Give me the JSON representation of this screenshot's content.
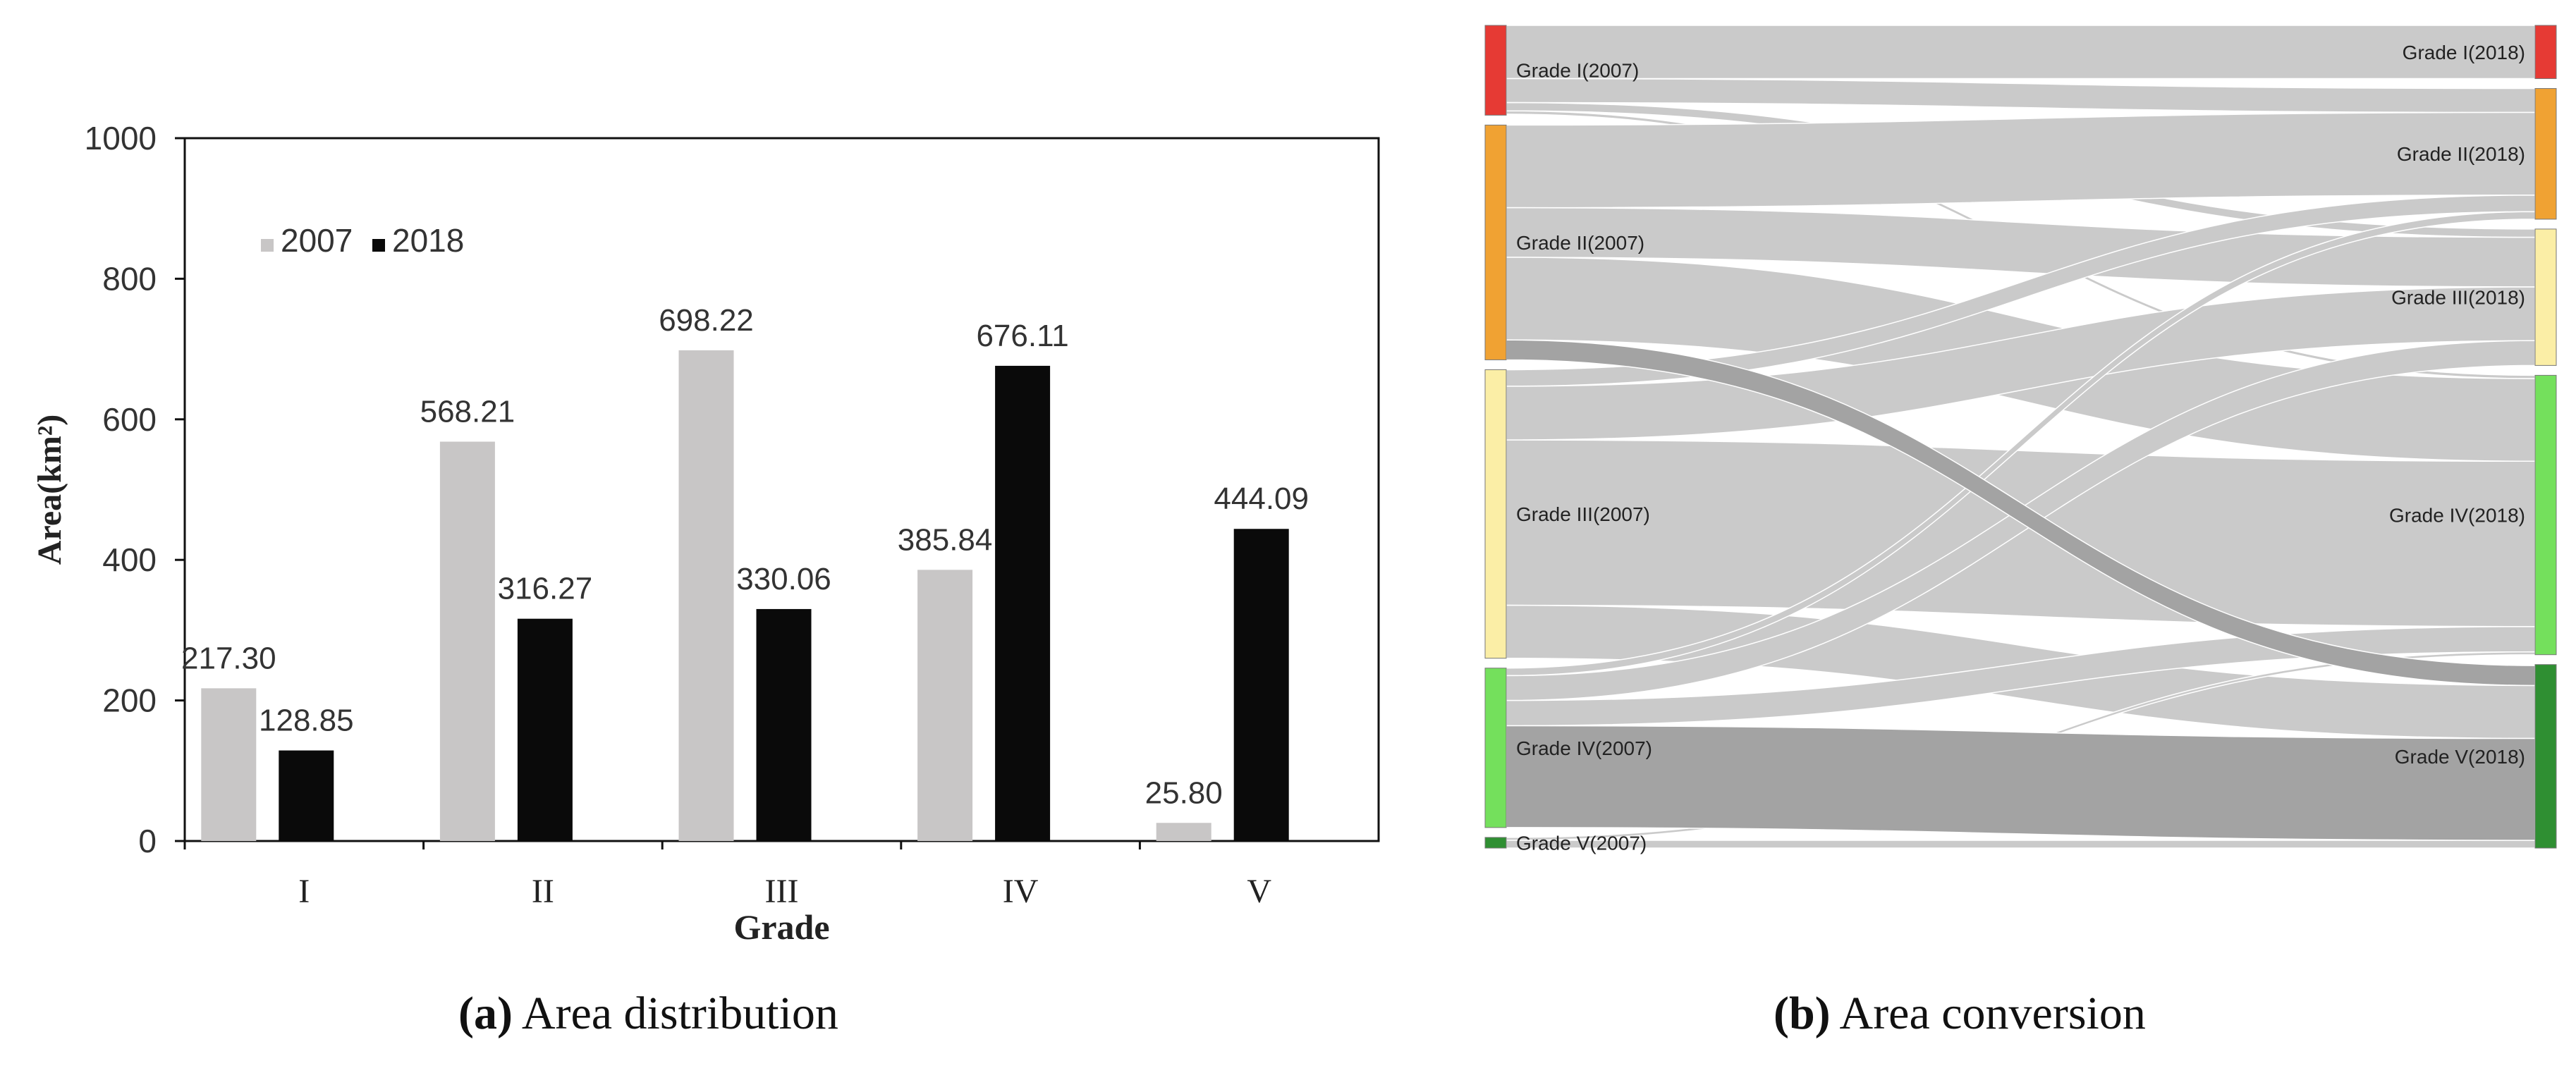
{
  "chart_data": [
    {
      "type": "bar",
      "caption_label": "(a)",
      "caption_text": "Area distribution",
      "xlabel": "Grade",
      "ylabel": "Area(km²)",
      "categories": [
        "I",
        "II",
        "III",
        "IV",
        "V"
      ],
      "ylim": [
        0,
        1000
      ],
      "yticks": [
        "0",
        "200",
        "400",
        "600",
        "800",
        "1000"
      ],
      "legend_position": "top-left",
      "grid": false,
      "series": [
        {
          "name": "2007",
          "color": "#c8c6c6",
          "values": [
            217.3,
            568.21,
            698.22,
            385.84,
            25.8
          ],
          "labels": [
            "217.30",
            "568.21",
            "698.22",
            "385.84",
            "25.80"
          ]
        },
        {
          "name": "2018",
          "color": "#0a0a0a",
          "values": [
            128.85,
            316.27,
            330.06,
            676.11,
            444.09
          ],
          "labels": [
            "128.85",
            "316.27",
            "330.06",
            "676.11",
            "444.09"
          ]
        }
      ]
    },
    {
      "type": "sankey",
      "caption_label": "(b)",
      "caption_text": "Area conversion",
      "link_color": "#c8c8c8",
      "highlight_color": "#9f9f9f",
      "sources": [
        {
          "label": "Grade I(2007)",
          "value": 217.3,
          "color": "#e63a34"
        },
        {
          "label": "Grade II(2007)",
          "value": 568.21,
          "color": "#f0a233"
        },
        {
          "label": "Grade III(2007)",
          "value": 698.22,
          "color": "#fbeea6"
        },
        {
          "label": "Grade IV(2007)",
          "value": 385.84,
          "color": "#74e05c"
        },
        {
          "label": "Grade V(2007)",
          "value": 25.8,
          "color": "#2f8f32"
        }
      ],
      "targets": [
        {
          "label": "Grade I(2018)",
          "value": 128.85,
          "color": "#e63a34"
        },
        {
          "label": "Grade II(2018)",
          "value": 316.27,
          "color": "#f0a233"
        },
        {
          "label": "Grade III(2018)",
          "value": 330.06,
          "color": "#fbeea6"
        },
        {
          "label": "Grade IV(2018)",
          "value": 676.11,
          "color": "#74e05c"
        },
        {
          "label": "Grade V(2018)",
          "value": 444.09,
          "color": "#2f8f32"
        }
      ],
      "links": [
        {
          "source": 0,
          "target": 0,
          "value": 128.85
        },
        {
          "source": 0,
          "target": 1,
          "value": 58
        },
        {
          "source": 0,
          "target": 2,
          "value": 20
        },
        {
          "source": 0,
          "target": 3,
          "value": 8
        },
        {
          "source": 0,
          "target": 4,
          "value": 2.45
        },
        {
          "source": 1,
          "target": 1,
          "value": 200
        },
        {
          "source": 1,
          "target": 2,
          "value": 120
        },
        {
          "source": 1,
          "target": 3,
          "value": 200
        },
        {
          "source": 1,
          "target": 4,
          "value": 48.21,
          "highlight": true
        },
        {
          "source": 2,
          "target": 1,
          "value": 40
        },
        {
          "source": 2,
          "target": 2,
          "value": 130
        },
        {
          "source": 2,
          "target": 3,
          "value": 400
        },
        {
          "source": 2,
          "target": 4,
          "value": 128.22
        },
        {
          "source": 3,
          "target": 1,
          "value": 18.27
        },
        {
          "source": 3,
          "target": 2,
          "value": 60.06
        },
        {
          "source": 3,
          "target": 3,
          "value": 61.11
        },
        {
          "source": 3,
          "target": 4,
          "value": 246.4,
          "highlight": true
        },
        {
          "source": 4,
          "target": 3,
          "value": 7
        },
        {
          "source": 4,
          "target": 4,
          "value": 18.8
        }
      ]
    }
  ]
}
